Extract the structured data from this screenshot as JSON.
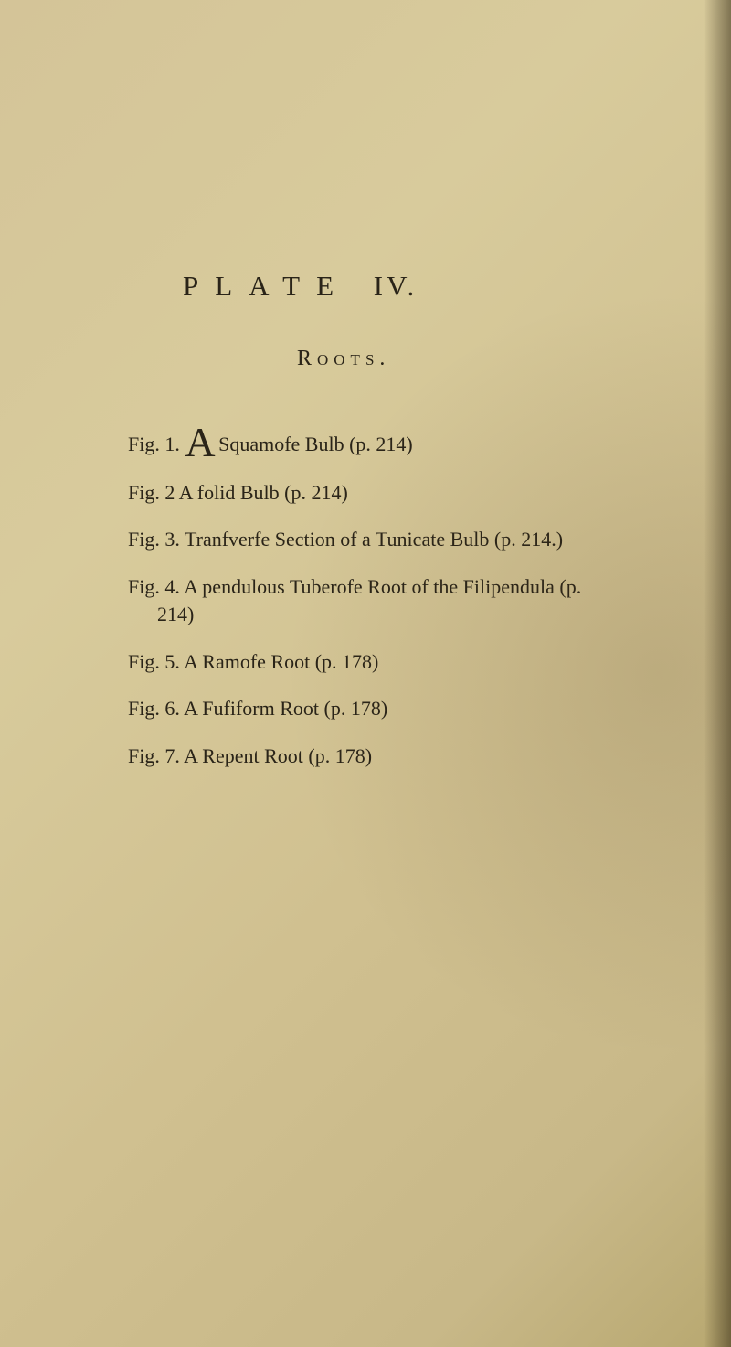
{
  "plate": {
    "label": "PLATE",
    "number": "IV."
  },
  "subtitle": "Roots.",
  "figures": [
    {
      "prefix": "Fig. 1. ",
      "dropCap": "A",
      "text": " Squamofe Bulb (p. 214)"
    },
    {
      "text": "Fig. 2 A folid Bulb (p. 214)"
    },
    {
      "text": "Fig. 3. Tranfverfe Section of a Tunicate Bulb (p. 214.)"
    },
    {
      "text": "Fig. 4. A pendulous Tuberofe Root of the Filipendula (p. 214)"
    },
    {
      "text": "Fig. 5. A Ramofe Root (p. 178)"
    },
    {
      "text": "Fig. 6. A Fufiform Root (p. 178)"
    },
    {
      "text": "Fig. 7. A Repent Root (p. 178)"
    }
  ]
}
